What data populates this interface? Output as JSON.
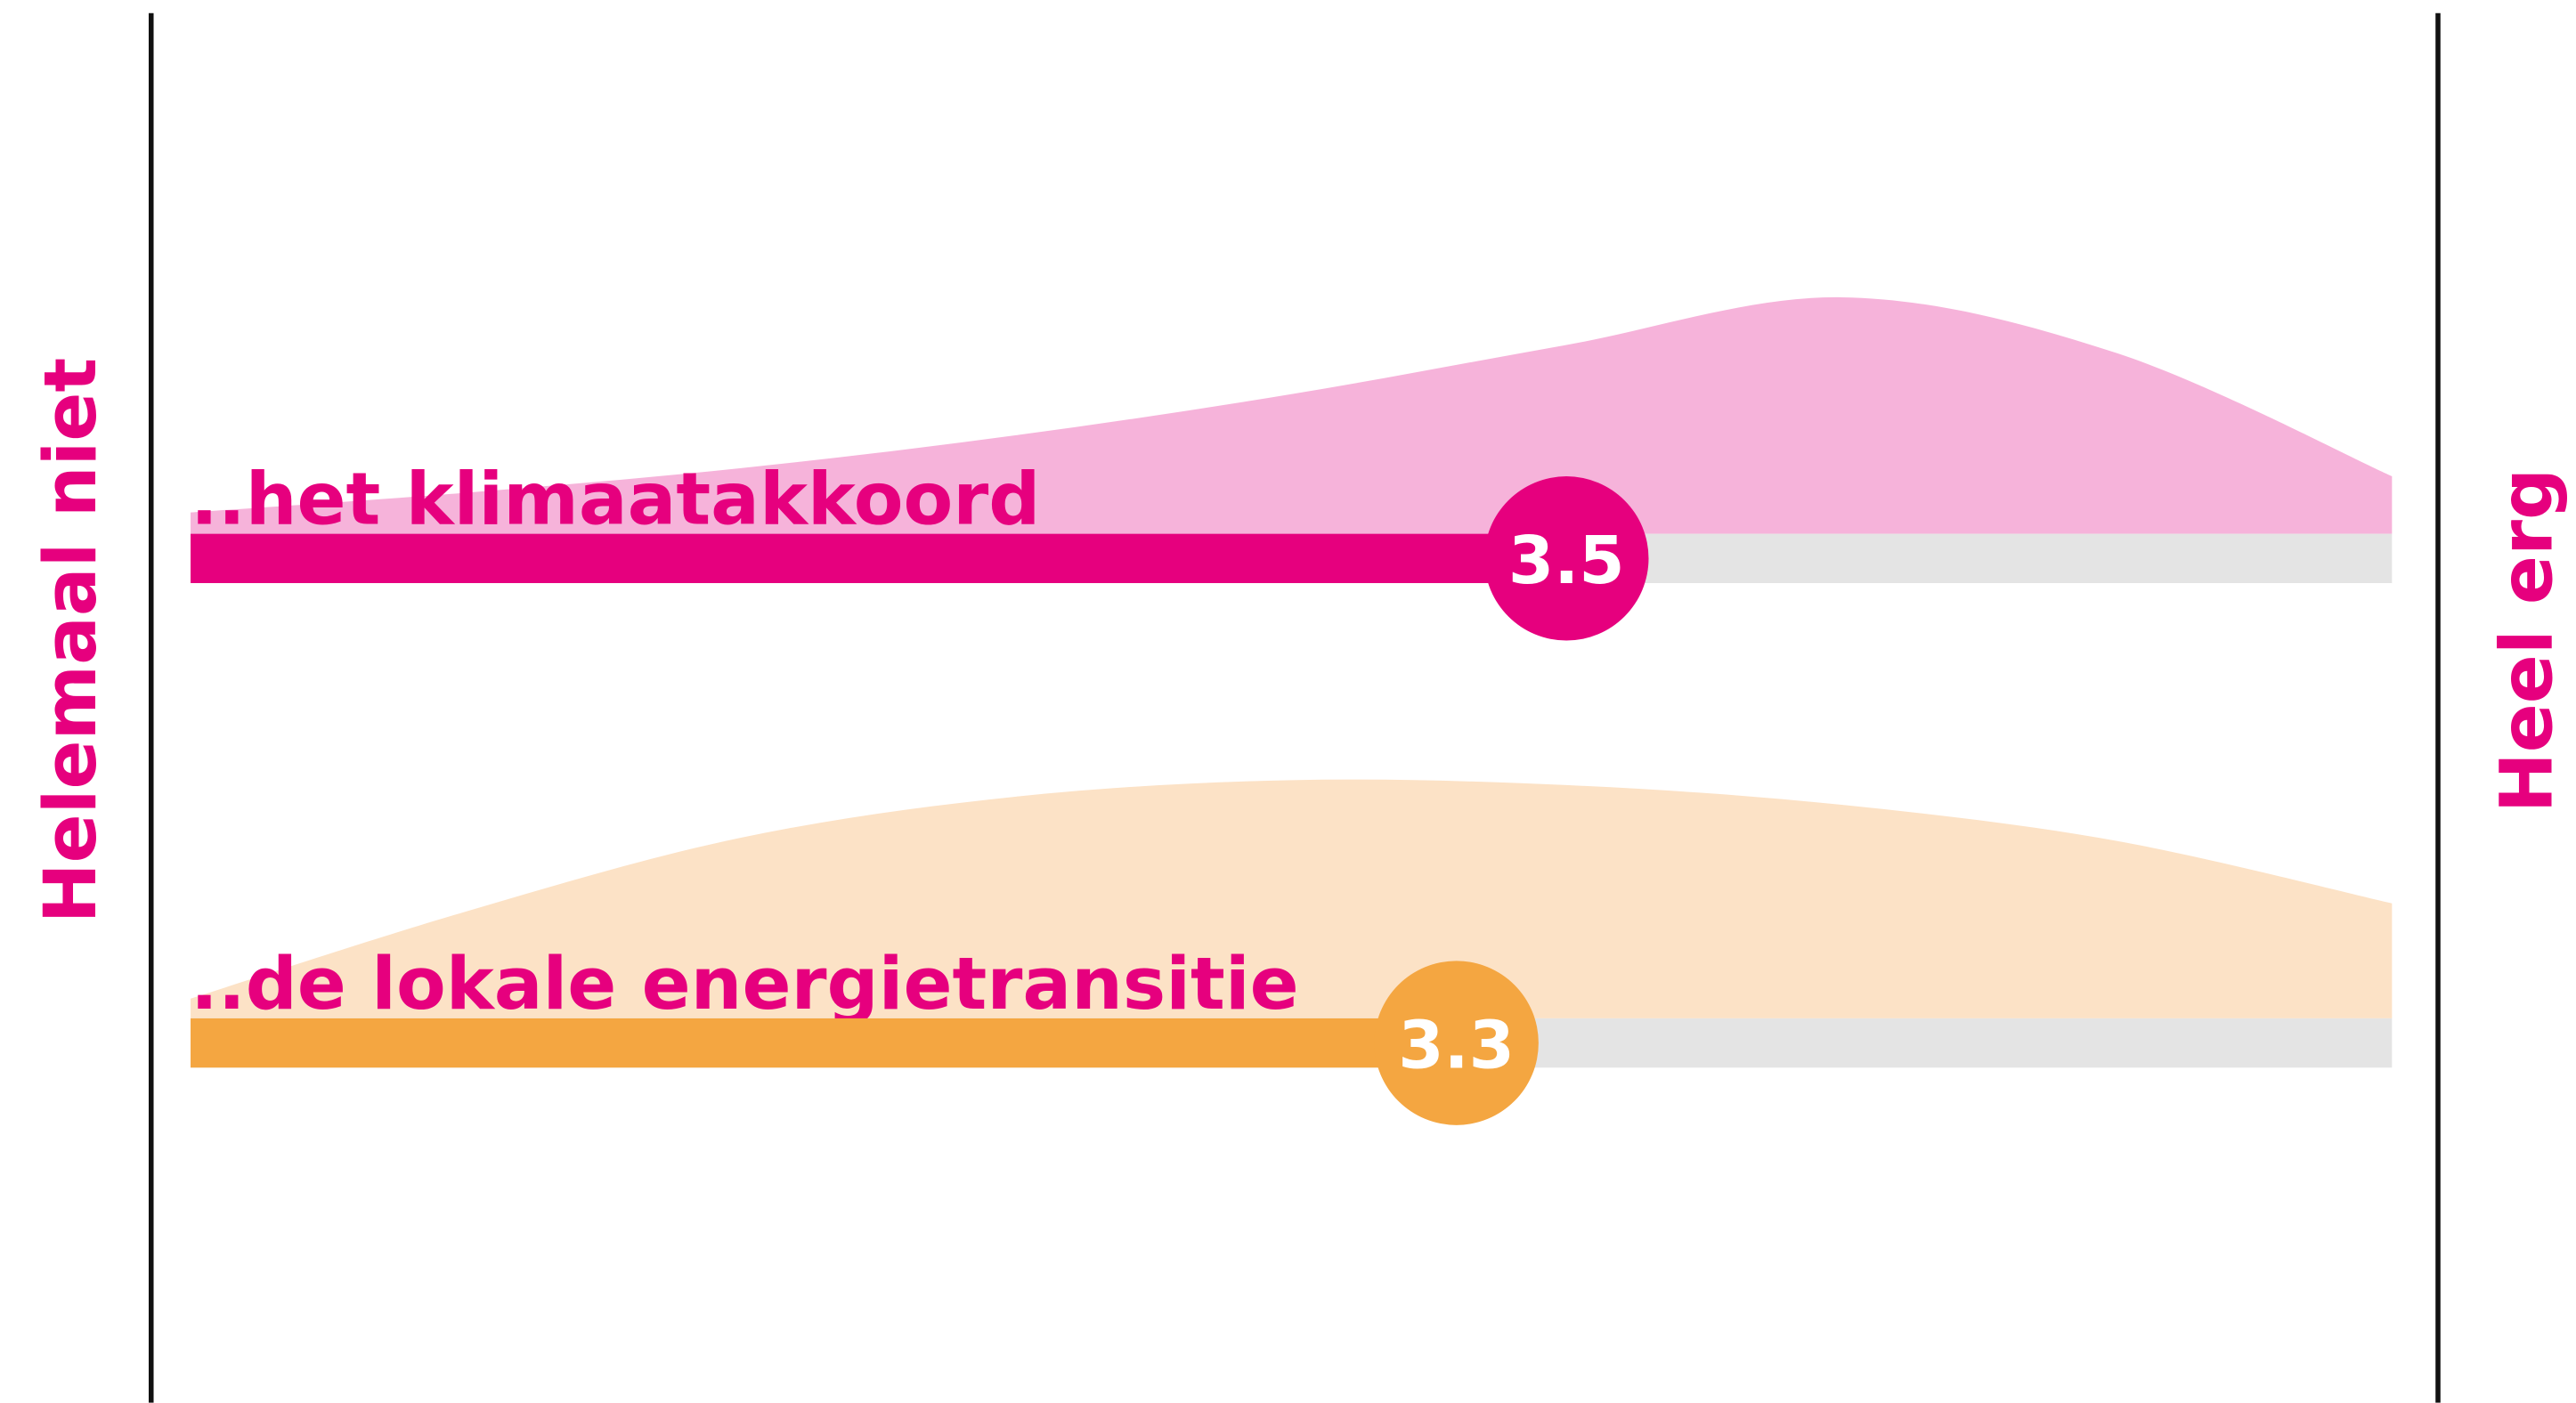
{
  "chart_data": {
    "type": "density-bar",
    "left_label": "Helemaal niet",
    "right_label": "Heel erg",
    "xlim": [
      1,
      5
    ],
    "x": [
      1,
      1.5,
      2,
      2.5,
      3,
      3.5,
      4,
      4.5,
      5
    ],
    "ylim": [
      0,
      150
    ],
    "track_color": "#e4e4e4",
    "label_color": "#e6007e",
    "series": [
      {
        "name": "..het klimaatakkoord",
        "color": "#e6007e",
        "fill": "#f6b3da",
        "mean": 3.5,
        "values": [
          13,
          25,
          40,
          60,
          85,
          115,
          144,
          110,
          35
        ]
      },
      {
        "name": "..de lokale energietransitie",
        "color": "#f4a641",
        "fill": "#fce2c6",
        "mean": 3.3,
        "values": [
          12,
          65,
          110,
          135,
          145,
          142,
          130,
          108,
          70
        ]
      }
    ]
  }
}
